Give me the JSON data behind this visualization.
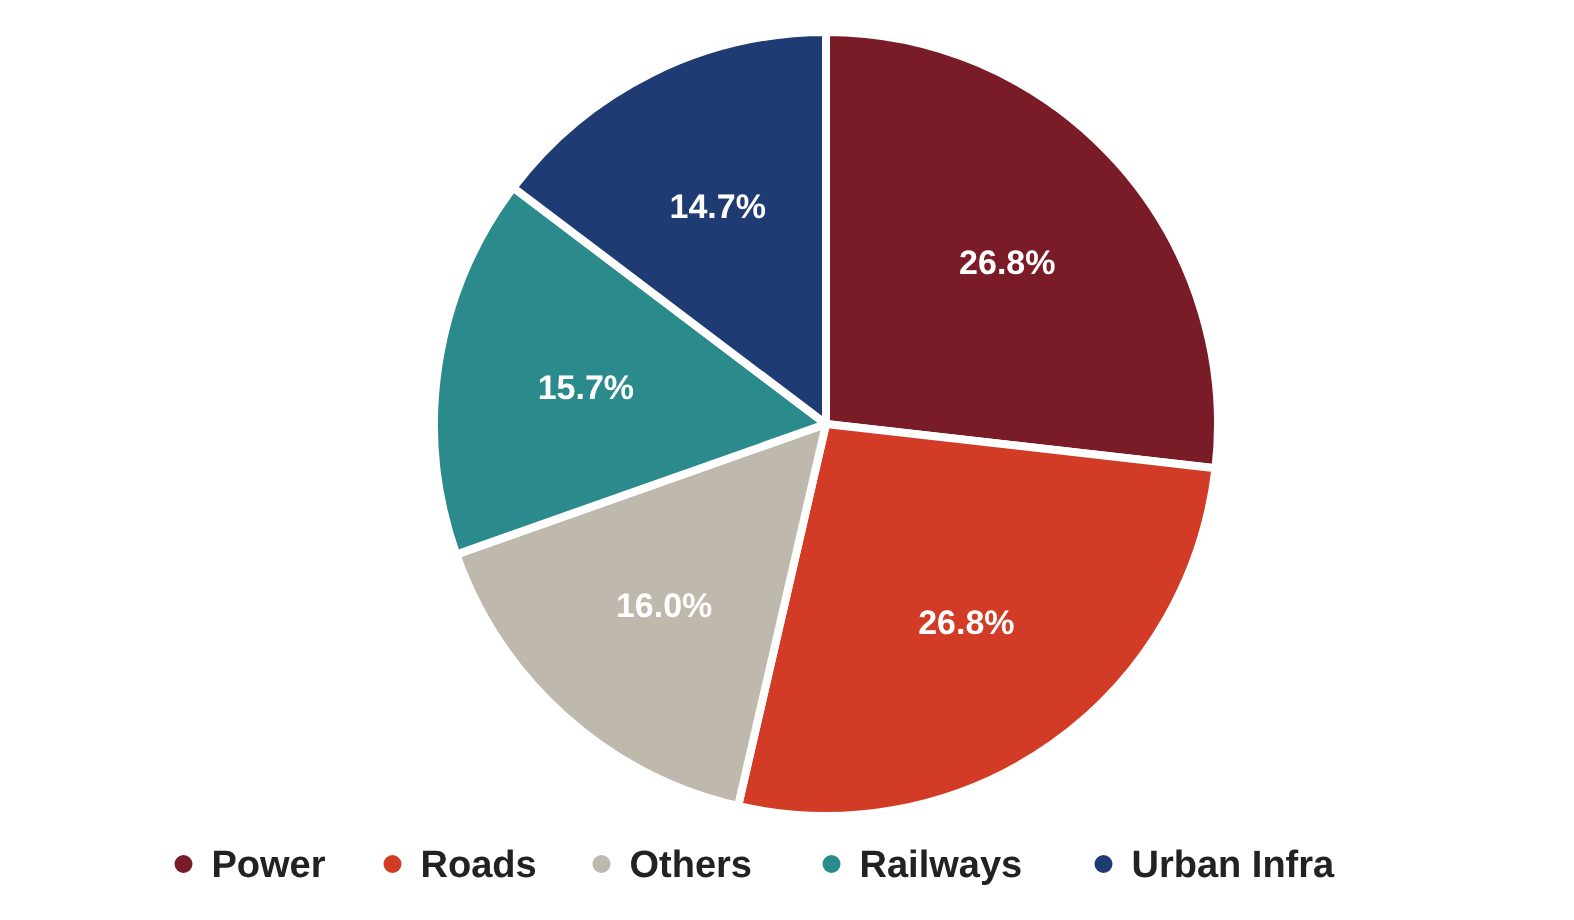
{
  "chart_data": {
    "type": "pie",
    "categories": [
      "Power",
      "Roads",
      "Others",
      "Railways",
      "Urban Infra"
    ],
    "values": [
      26.8,
      26.8,
      16.0,
      15.7,
      14.7
    ],
    "value_labels": [
      "26.8%",
      "26.8%",
      "16.0%",
      "15.7%",
      "14.7%"
    ],
    "colors": [
      "#7a1c28",
      "#d23b25",
      "#bfb8ad",
      "#2b8a8c",
      "#1e3b73"
    ],
    "legend": "bottom"
  }
}
